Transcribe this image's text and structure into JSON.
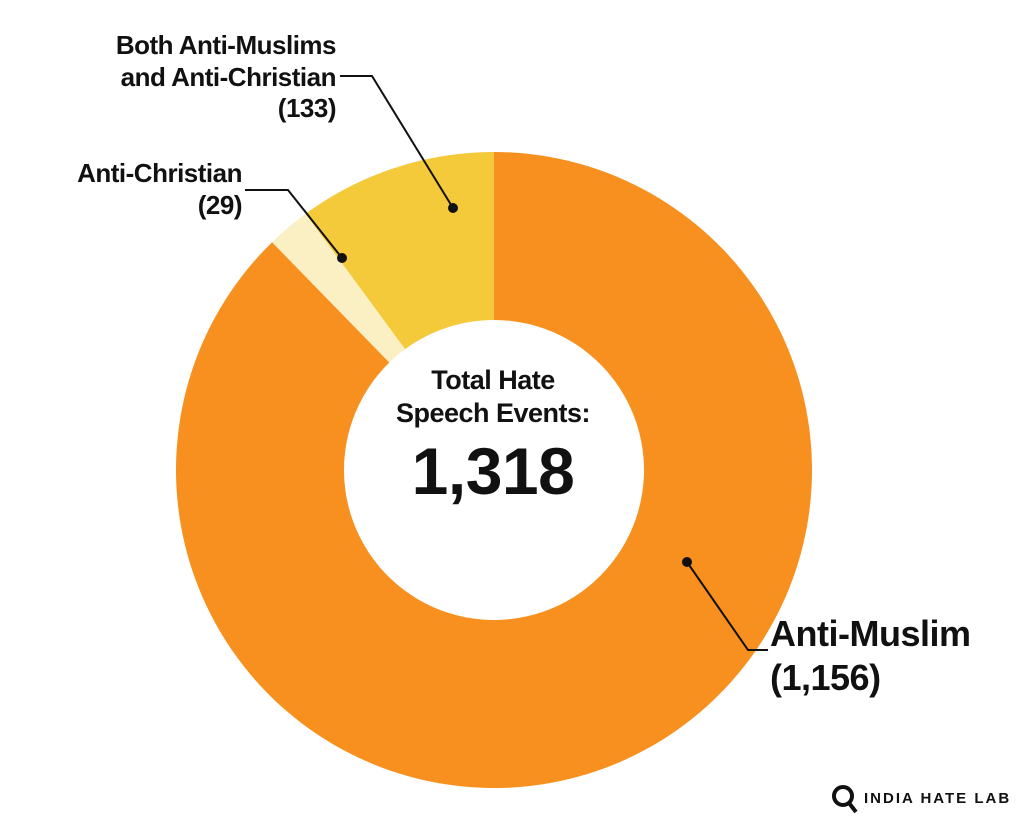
{
  "chart_data": {
    "type": "donut",
    "categories": [
      "Anti-Muslim",
      "Anti-Christian",
      "Both Anti-Muslims and Anti-Christian"
    ],
    "values": [
      1156,
      29,
      133
    ],
    "value_labels": [
      "(1,156)",
      "(29)",
      "(133)"
    ],
    "colors": [
      "#f7901e",
      "#faf0c4",
      "#f4c93a"
    ],
    "center_text": "Total Hate Speech Events:",
    "total_label": "1,318",
    "source": "INDIA HATE LAB"
  }
}
